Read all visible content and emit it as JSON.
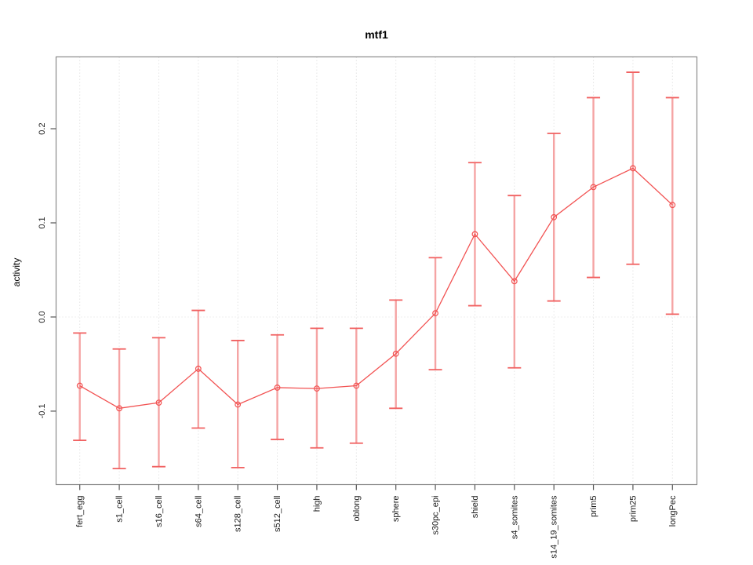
{
  "window": {
    "background": "#ffffff"
  },
  "chart_data": {
    "type": "line",
    "title": "mtf1",
    "xlabel": "",
    "ylabel": "activity",
    "legend": "none",
    "grid": {
      "vertical_per_category": true,
      "horizontal": false,
      "zero_line_dotted": true
    },
    "error_bars": true,
    "ylim": [
      -0.178,
      0.2763
    ],
    "yticks": [
      {
        "value": -0.1,
        "label": "-0.1"
      },
      {
        "value": 0.0,
        "label": "0.0"
      },
      {
        "value": 0.1,
        "label": "0.1"
      },
      {
        "value": 0.2,
        "label": "0.2"
      }
    ],
    "categories": [
      "fert_egg",
      "s1_cell",
      "s16_cell",
      "s64_cell",
      "s128_cell",
      "s512_cell",
      "high",
      "oblong",
      "sphere",
      "s30pc_epi",
      "shield",
      "s4_somites",
      "s14_19_somites",
      "prim5",
      "prim25",
      "longPec"
    ],
    "series": [
      {
        "name": "activity",
        "values": [
          -0.073,
          -0.097,
          -0.091,
          -0.055,
          -0.093,
          -0.075,
          -0.076,
          -0.073,
          -0.039,
          0.004,
          0.088,
          0.038,
          0.106,
          0.138,
          0.158,
          0.119
        ],
        "err_low": [
          -0.131,
          -0.161,
          -0.159,
          -0.118,
          -0.16,
          -0.13,
          -0.139,
          -0.134,
          -0.097,
          -0.056,
          0.012,
          -0.054,
          0.017,
          0.042,
          0.056,
          0.003
        ],
        "err_high": [
          -0.017,
          -0.034,
          -0.022,
          0.007,
          -0.025,
          -0.019,
          -0.012,
          -0.012,
          0.018,
          0.063,
          0.164,
          0.129,
          0.195,
          0.233,
          0.26,
          0.233
        ]
      }
    ],
    "colors": {
      "line": "#f25252",
      "point": "#f25252",
      "error_bar": "#f5a4a4",
      "error_cap": "#f16060",
      "grid": "#e5e5e5",
      "zero_line": "#dedede",
      "box": "#8a8a8a",
      "tick": "#555555",
      "text": "#1a1a1a"
    }
  }
}
